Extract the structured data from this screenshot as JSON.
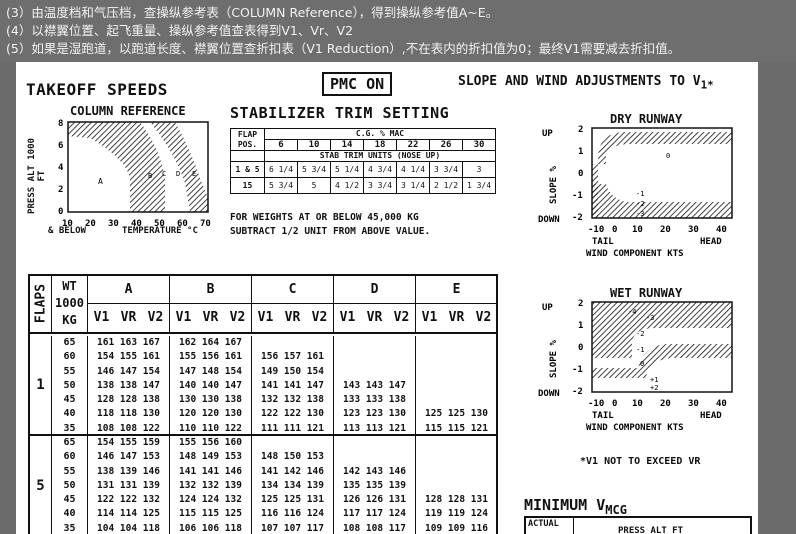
{
  "instructions": [
    "(3）由温度档和气压档，查操纵参考表（COLUMN Reference），得到操纵参考值A~E。",
    "(4）以襟翼位置、起飞重量、操纵参考值查表得到V1、Vr、V2",
    "(5）如果是湿跑道，以跑道长度、襟翼位置查折扣表（V1 Reduction）,不在表内的折扣值为0；最终V1需要减去折扣值。"
  ],
  "chart_title": "TAKEOFF SPEEDS",
  "pmc_label": "PMC ON",
  "slope_wind_title": "SLOPE AND WIND ADJUSTMENTS TO V",
  "slope_wind_sub": "1*",
  "column_ref": {
    "title": "COLUMN REFERENCE",
    "ylabel": "PRESS ALT 1000 FT",
    "yticks": [
      "8",
      "6",
      "4",
      "2",
      "0"
    ],
    "xticks": [
      "10",
      "20",
      "30",
      "40",
      "50",
      "60",
      "70"
    ],
    "below_label": "& BELOW",
    "xlabel": "TEMPERATURE °C",
    "zones": [
      "A",
      "B",
      "C",
      "D",
      "E"
    ]
  },
  "stab_trim": {
    "title": "STABILIZER TRIM SETTING",
    "cg_label": "C.G. % MAC",
    "flap_label": "FLAP",
    "pos_label": "POS.",
    "cg_values": [
      "6",
      "10",
      "14",
      "18",
      "22",
      "26",
      "30"
    ],
    "units_label": "STAB TRIM UNITS (NOSE UP)",
    "rows": [
      {
        "flap": "1 & 5",
        "vals": [
          "6 1/4",
          "5 3/4",
          "5 1/4",
          "4 3/4",
          "4 1/4",
          "3 3/4",
          "3"
        ]
      },
      {
        "flap": "15",
        "vals": [
          "5 3/4",
          "5",
          "4 1/2",
          "3 3/4",
          "3 1/4",
          "2 1/2",
          "1 3/4"
        ]
      }
    ],
    "note1": "FOR WEIGHTS AT OR BELOW 45,000 KG",
    "note2": "SUBTRACT 1/2 UNIT FROM ABOVE VALUE."
  },
  "dry_runway": {
    "title": "DRY RUNWAY",
    "up": "UP",
    "down": "DOWN",
    "ylabel": "SLOPE %",
    "yticks": [
      "2",
      "1",
      "0",
      "-1",
      "-2"
    ],
    "xticks": [
      "-10",
      "0",
      "10",
      "20",
      "30",
      "40"
    ],
    "tail": "TAIL",
    "head": "HEAD",
    "xlabel": "WIND COMPONENT KTS",
    "region_labels": [
      "0",
      "-1",
      "-2",
      "-3"
    ]
  },
  "wet_runway": {
    "title": "WET RUNWAY",
    "up": "UP",
    "down": "DOWN",
    "ylabel": "SLOPE %",
    "yticks": [
      "2",
      "1",
      "0",
      "-1",
      "-2"
    ],
    "xticks": [
      "-10",
      "0",
      "10",
      "20",
      "30",
      "40"
    ],
    "tail": "TAIL",
    "head": "HEAD",
    "xlabel": "WIND COMPONENT KTS",
    "region_labels": [
      "-4",
      "-3",
      "-2",
      "-1",
      "0",
      "+1",
      "+2"
    ]
  },
  "v1_note": "*V1 NOT TO EXCEED VR",
  "min_vmcg": "MINIMUM V",
  "min_vmcg_sub": "MCG",
  "actual_label": "ACTUAL",
  "press_alt_label": "PRESS ALT FT",
  "speeds": {
    "flaps_label": "FLAPS",
    "wt_label": [
      "WT",
      "1000",
      "KG"
    ],
    "columns": [
      "A",
      "B",
      "C",
      "D",
      "E"
    ],
    "vlabels": [
      "V1",
      "VR",
      "V2"
    ],
    "groups": [
      {
        "flap": "1",
        "weights": [
          "65",
          "60",
          "55",
          "50",
          "45",
          "40",
          "35"
        ],
        "rows": [
          [
            "161 163 167",
            "162 164 167",
            "",
            "",
            ""
          ],
          [
            "154 155 161",
            "155 156 161",
            "156 157 161",
            "",
            ""
          ],
          [
            "146 147 154",
            "147 148 154",
            "149 150 154",
            "",
            ""
          ],
          [
            "138 138 147",
            "140 140 147",
            "141 141 147",
            "143 143 147",
            ""
          ],
          [
            "128 128 138",
            "130 130 138",
            "132 132 138",
            "133 133 138",
            ""
          ],
          [
            "118 118 130",
            "120 120 130",
            "122 122 130",
            "123 123 130",
            "125 125 130"
          ],
          [
            "108 108 122",
            "110 110 122",
            "111 111 121",
            "113 113 121",
            "115 115 121"
          ]
        ]
      },
      {
        "flap": "5",
        "weights": [
          "65",
          "60",
          "55",
          "50",
          "45",
          "40",
          "35"
        ],
        "rows": [
          [
            "154 155 159",
            "155 156 160",
            "",
            "",
            ""
          ],
          [
            "146 147 153",
            "148 149 153",
            "148 150 153",
            "",
            ""
          ],
          [
            "138 139 146",
            "141 141 146",
            "141 142 146",
            "142 143 146",
            ""
          ],
          [
            "131 131 139",
            "132 132 139",
            "134 134 139",
            "135 135 139",
            ""
          ],
          [
            "122 122 132",
            "124 124 132",
            "125 125 131",
            "126 126 131",
            "128 128 131"
          ],
          [
            "114 114 125",
            "115 115 125",
            "116 116 124",
            "117 117 124",
            "119 119 124"
          ],
          [
            "104 104 118",
            "106 106 118",
            "107 107 117",
            "108 108 117",
            "109 109 116"
          ]
        ]
      }
    ]
  }
}
